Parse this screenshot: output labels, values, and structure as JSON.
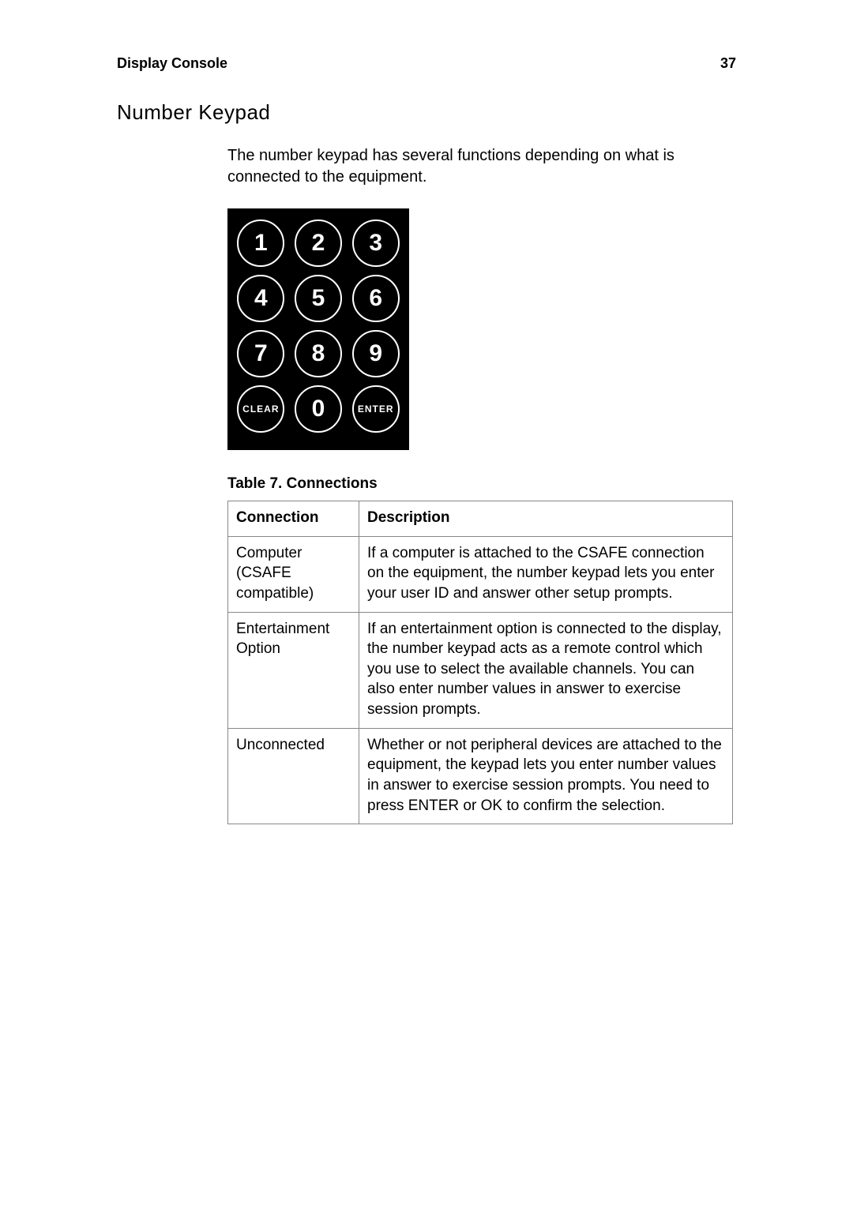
{
  "header": {
    "left": "Display Console",
    "page_number": "37"
  },
  "section_title": "Number Keypad",
  "intro_text": "The number keypad has several functions depending on what is connected to the equipment.",
  "keypad": {
    "keys": [
      "1",
      "2",
      "3",
      "4",
      "5",
      "6",
      "7",
      "8",
      "9",
      "CLEAR",
      "0",
      "ENTER"
    ],
    "num_font_size": 30,
    "small_font_size": 12,
    "bg_color": "#000000",
    "fg_color": "#ffffff",
    "border_width": 2.5
  },
  "table": {
    "caption": "Table  7.  Connections",
    "headers": [
      "Connection",
      "Description"
    ],
    "rows": [
      {
        "connection": "Computer (CSAFE compatible)",
        "description": "If a computer is attached to the CSAFE connection on the equipment, the number keypad lets you enter your user ID and answer other setup prompts."
      },
      {
        "connection": "Entertainment Option",
        "description": "If an entertainment option is connected to the display, the number keypad acts as a remote control which you use to select the available channels. You can also enter number values in answer to exercise session prompts."
      },
      {
        "connection": "Unconnected",
        "description": "Whether or not peripheral devices are attached to the equipment, the keypad lets you enter number values in answer to exercise session prompts. You need to press ENTER or OK to confirm the selection."
      }
    ]
  }
}
